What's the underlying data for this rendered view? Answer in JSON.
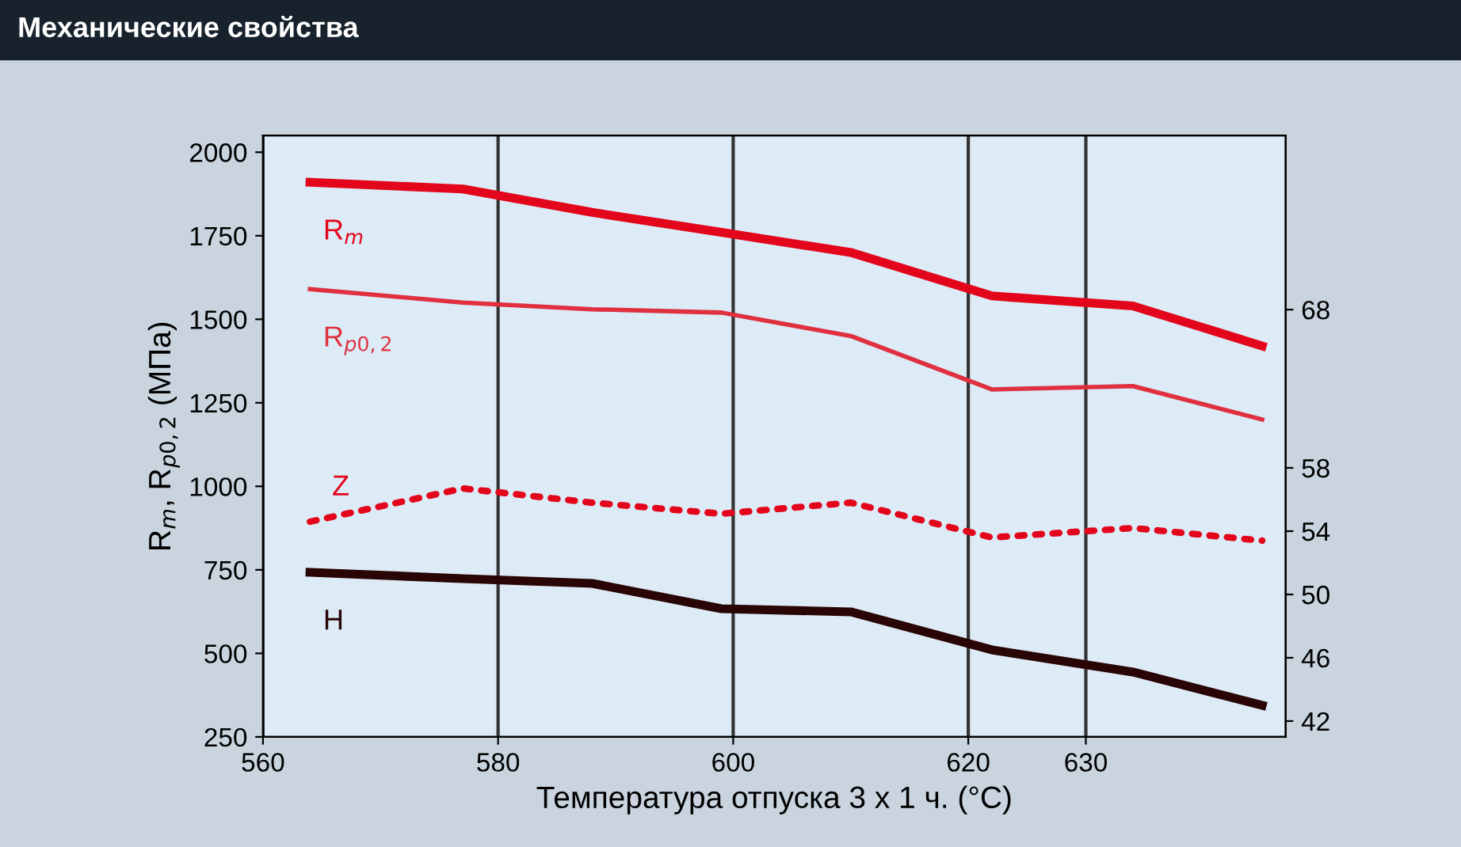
{
  "chart_data": {
    "type": "line",
    "title": "Механические свойства",
    "xlabel": "Температура отпуска 3 x 1 ч. (°C)",
    "ylabel": "R$_{m}$, R$_{p0,2}$ (МПа)",
    "x": [
      564,
      577,
      588,
      599,
      610,
      622,
      634,
      645
    ],
    "xlim": [
      560,
      647
    ],
    "xticks": [
      560,
      580,
      600,
      620,
      630
    ],
    "ylim": [
      250,
      2050
    ],
    "yticks": [
      250,
      500,
      750,
      1000,
      1250,
      1500,
      1750,
      2000
    ],
    "y2lim": [
      41,
      79
    ],
    "y2ticks": [
      42,
      46,
      50,
      54,
      58,
      68
    ],
    "grid": "x",
    "legend": false,
    "series": [
      {
        "name": "R$_{m}$",
        "color": "#e3051b",
        "values": [
          1910,
          1890,
          1820,
          1760,
          1700,
          1570,
          1540,
          1420
        ],
        "line_style": "solid"
      },
      {
        "name": "R$_{p0,2}$",
        "color": "#e0303f",
        "values": [
          1590,
          1550,
          1530,
          1520,
          1450,
          1290,
          1300,
          1200
        ],
        "line_style": "solid"
      },
      {
        "name": "Z",
        "color": "#e3051b",
        "axis": "y2",
        "values": [
          54.6,
          56.7,
          55.8,
          55.1,
          55.8,
          53.6,
          54.2,
          53.4
        ],
        "line_style": "dotted"
      },
      {
        "name": "H",
        "color": "#2a0505",
        "axis": "y2",
        "values": [
          51.4,
          51.0,
          50.7,
          49.1,
          48.9,
          46.5,
          45.1,
          43.0
        ],
        "line_style": "solid"
      }
    ]
  }
}
